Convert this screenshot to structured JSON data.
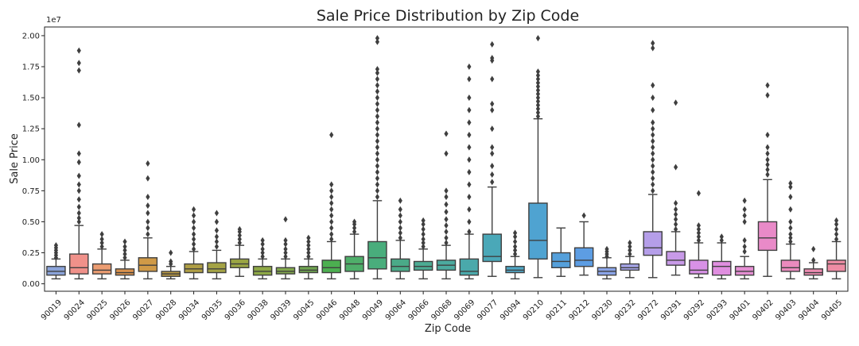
{
  "chart_data": {
    "type": "box",
    "title": "Sale Price Distribution by Zip Code",
    "xlabel": "Zip Code",
    "ylabel": "Sale Price",
    "y_scale_label": "1e7",
    "ylim": [
      -0.06,
      2.07
    ],
    "y_ticks": [
      {
        "value": 0.0,
        "label": "0.00"
      },
      {
        "value": 0.25,
        "label": "0.25"
      },
      {
        "value": 0.5,
        "label": "0.50"
      },
      {
        "value": 0.75,
        "label": "0.75"
      },
      {
        "value": 1.0,
        "label": "1.00"
      },
      {
        "value": 1.25,
        "label": "1.25"
      },
      {
        "value": 1.5,
        "label": "1.50"
      },
      {
        "value": 1.75,
        "label": "1.75"
      },
      {
        "value": 2.0,
        "label": "2.00"
      }
    ],
    "grid": false,
    "legend": "none",
    "boxes": [
      {
        "zip": "90019",
        "color": "#8aa3d9",
        "whislo": 0.04,
        "q1": 0.07,
        "med": 0.1,
        "q3": 0.14,
        "whishi": 0.2,
        "fliers": [
          0.21,
          0.23,
          0.25,
          0.27,
          0.29,
          0.31
        ]
      },
      {
        "zip": "90024",
        "color": "#f0918a",
        "whislo": 0.04,
        "q1": 0.08,
        "med": 0.13,
        "q3": 0.24,
        "whishi": 0.47,
        "fliers": [
          0.5,
          0.53,
          0.57,
          0.62,
          0.68,
          0.75,
          0.8,
          0.87,
          0.98,
          1.05,
          1.28,
          1.72,
          1.78,
          1.88
        ]
      },
      {
        "zip": "90025",
        "color": "#ec9d72",
        "whislo": 0.04,
        "q1": 0.08,
        "med": 0.11,
        "q3": 0.16,
        "whishi": 0.28,
        "fliers": [
          0.3,
          0.33,
          0.36,
          0.4
        ]
      },
      {
        "zip": "90026",
        "color": "#d9914d",
        "whislo": 0.04,
        "q1": 0.07,
        "med": 0.09,
        "q3": 0.12,
        "whishi": 0.19,
        "fliers": [
          0.21,
          0.24,
          0.27,
          0.3,
          0.34
        ]
      },
      {
        "zip": "90027",
        "color": "#d09a47",
        "whislo": 0.04,
        "q1": 0.1,
        "med": 0.15,
        "q3": 0.21,
        "whishi": 0.37,
        "fliers": [
          0.4,
          0.45,
          0.5,
          0.57,
          0.63,
          0.7,
          0.85,
          0.97
        ]
      },
      {
        "zip": "90028",
        "color": "#bd9b42",
        "whislo": 0.04,
        "q1": 0.06,
        "med": 0.08,
        "q3": 0.1,
        "whishi": 0.14,
        "fliers": [
          0.16,
          0.18,
          0.25
        ]
      },
      {
        "zip": "90034",
        "color": "#b09f45",
        "whislo": 0.04,
        "q1": 0.09,
        "med": 0.12,
        "q3": 0.16,
        "whishi": 0.26,
        "fliers": [
          0.28,
          0.32,
          0.36,
          0.4,
          0.45,
          0.5,
          0.55,
          0.6
        ]
      },
      {
        "zip": "90035",
        "color": "#a4a345",
        "whislo": 0.04,
        "q1": 0.09,
        "med": 0.12,
        "q3": 0.17,
        "whishi": 0.27,
        "fliers": [
          0.3,
          0.34,
          0.38,
          0.43,
          0.5,
          0.57
        ]
      },
      {
        "zip": "90036",
        "color": "#9aa544",
        "whislo": 0.06,
        "q1": 0.13,
        "med": 0.16,
        "q3": 0.2,
        "whishi": 0.31,
        "fliers": [
          0.33,
          0.36,
          0.39,
          0.42,
          0.44
        ]
      },
      {
        "zip": "90038",
        "color": "#8ea846",
        "whislo": 0.04,
        "q1": 0.07,
        "med": 0.1,
        "q3": 0.14,
        "whishi": 0.2,
        "fliers": [
          0.22,
          0.25,
          0.28,
          0.32,
          0.35
        ]
      },
      {
        "zip": "90039",
        "color": "#82a84d",
        "whislo": 0.04,
        "q1": 0.08,
        "med": 0.1,
        "q3": 0.13,
        "whishi": 0.2,
        "fliers": [
          0.22,
          0.25,
          0.28,
          0.32,
          0.35,
          0.52
        ]
      },
      {
        "zip": "90045",
        "color": "#6ea34f",
        "whislo": 0.04,
        "q1": 0.09,
        "med": 0.11,
        "q3": 0.14,
        "whishi": 0.2,
        "fliers": [
          0.22,
          0.25,
          0.28,
          0.31,
          0.34,
          0.37
        ]
      },
      {
        "zip": "90046",
        "color": "#4caf50",
        "whislo": 0.04,
        "q1": 0.09,
        "med": 0.13,
        "q3": 0.19,
        "whishi": 0.34,
        "fliers": [
          0.36,
          0.4,
          0.45,
          0.5,
          0.55,
          0.6,
          0.65,
          0.7,
          0.75,
          0.8,
          1.2
        ]
      },
      {
        "zip": "90048",
        "color": "#4fae6a",
        "whislo": 0.04,
        "q1": 0.1,
        "med": 0.16,
        "q3": 0.22,
        "whishi": 0.4,
        "fliers": [
          0.42,
          0.45,
          0.48,
          0.5
        ]
      },
      {
        "zip": "90049",
        "color": "#49ad7c",
        "whislo": 0.04,
        "q1": 0.12,
        "med": 0.21,
        "q3": 0.34,
        "whishi": 0.67,
        "fliers": [
          0.7,
          0.75,
          0.8,
          0.85,
          0.9,
          0.95,
          1.0,
          1.05,
          1.1,
          1.15,
          1.2,
          1.25,
          1.3,
          1.35,
          1.4,
          1.45,
          1.5,
          1.55,
          1.6,
          1.65,
          1.7,
          1.73,
          1.95,
          1.98
        ]
      },
      {
        "zip": "90064",
        "color": "#4aaa88",
        "whislo": 0.04,
        "q1": 0.1,
        "med": 0.14,
        "q3": 0.2,
        "whishi": 0.35,
        "fliers": [
          0.37,
          0.41,
          0.45,
          0.5,
          0.55,
          0.6,
          0.67
        ]
      },
      {
        "zip": "90066",
        "color": "#4cab93",
        "whislo": 0.04,
        "q1": 0.11,
        "med": 0.14,
        "q3": 0.18,
        "whishi": 0.28,
        "fliers": [
          0.3,
          0.33,
          0.36,
          0.4,
          0.44,
          0.48,
          0.51
        ]
      },
      {
        "zip": "90068",
        "color": "#4caa9f",
        "whislo": 0.04,
        "q1": 0.11,
        "med": 0.15,
        "q3": 0.19,
        "whishi": 0.31,
        "fliers": [
          0.33,
          0.37,
          0.42,
          0.47,
          0.52,
          0.58,
          0.64,
          0.7,
          0.75,
          1.05,
          1.21
        ]
      },
      {
        "zip": "90069",
        "color": "#4aa9ab",
        "whislo": 0.04,
        "q1": 0.07,
        "med": 0.1,
        "q3": 0.2,
        "whishi": 0.4,
        "fliers": [
          0.42,
          0.5,
          0.6,
          0.7,
          0.8,
          0.9,
          1.0,
          1.1,
          1.2,
          1.3,
          1.4,
          1.5,
          1.65,
          1.75
        ]
      },
      {
        "zip": "90077",
        "color": "#4aa8b8",
        "whislo": 0.06,
        "q1": 0.18,
        "med": 0.22,
        "q3": 0.4,
        "whishi": 0.78,
        "fliers": [
          0.82,
          0.88,
          0.95,
          1.05,
          1.1,
          1.25,
          1.4,
          1.45,
          1.65,
          1.8,
          1.82,
          1.93
        ]
      },
      {
        "zip": "90094",
        "color": "#4ea6c4",
        "whislo": 0.04,
        "q1": 0.09,
        "med": 0.11,
        "q3": 0.14,
        "whishi": 0.22,
        "fliers": [
          0.24,
          0.27,
          0.3,
          0.34,
          0.38,
          0.41
        ]
      },
      {
        "zip": "90210",
        "color": "#4fa3d1",
        "whislo": 0.05,
        "q1": 0.2,
        "med": 0.35,
        "q3": 0.65,
        "whishi": 1.33,
        "fliers": [
          1.35,
          1.38,
          1.41,
          1.44,
          1.47,
          1.5,
          1.53,
          1.56,
          1.59,
          1.62,
          1.65,
          1.68,
          1.71,
          1.98
        ]
      },
      {
        "zip": "90211",
        "color": "#55a0db",
        "whislo": 0.06,
        "q1": 0.13,
        "med": 0.18,
        "q3": 0.25,
        "whishi": 0.45,
        "fliers": []
      },
      {
        "zip": "90212",
        "color": "#5d9de3",
        "whislo": 0.07,
        "q1": 0.14,
        "med": 0.19,
        "q3": 0.29,
        "whishi": 0.5,
        "fliers": [
          0.55
        ]
      },
      {
        "zip": "90230",
        "color": "#8ba5e8",
        "whislo": 0.04,
        "q1": 0.07,
        "med": 0.1,
        "q3": 0.13,
        "whishi": 0.21,
        "fliers": [
          0.22,
          0.24,
          0.26,
          0.28
        ]
      },
      {
        "zip": "90232",
        "color": "#a7a6e9",
        "whislo": 0.05,
        "q1": 0.11,
        "med": 0.13,
        "q3": 0.16,
        "whishi": 0.22,
        "fliers": [
          0.24,
          0.27,
          0.3,
          0.33
        ]
      },
      {
        "zip": "90272",
        "color": "#b59ee9",
        "whislo": 0.05,
        "q1": 0.23,
        "med": 0.29,
        "q3": 0.42,
        "whishi": 0.72,
        "fliers": [
          0.75,
          0.8,
          0.85,
          0.9,
          0.95,
          1.0,
          1.05,
          1.1,
          1.15,
          1.2,
          1.25,
          1.3,
          1.4,
          1.5,
          1.6,
          1.9,
          1.94
        ]
      },
      {
        "zip": "90291",
        "color": "#c89ae8",
        "whislo": 0.07,
        "q1": 0.15,
        "med": 0.19,
        "q3": 0.26,
        "whishi": 0.42,
        "fliers": [
          0.44,
          0.48,
          0.52,
          0.56,
          0.6,
          0.65,
          0.94,
          1.46
        ]
      },
      {
        "zip": "90292",
        "color": "#d891e6",
        "whislo": 0.05,
        "q1": 0.08,
        "med": 0.11,
        "q3": 0.19,
        "whishi": 0.33,
        "fliers": [
          0.35,
          0.38,
          0.41,
          0.44,
          0.47,
          0.73
        ]
      },
      {
        "zip": "90293",
        "color": "#e08ee0",
        "whislo": 0.04,
        "q1": 0.07,
        "med": 0.14,
        "q3": 0.18,
        "whishi": 0.33,
        "fliers": [
          0.35,
          0.38
        ]
      },
      {
        "zip": "90401",
        "color": "#e48ed2",
        "whislo": 0.04,
        "q1": 0.07,
        "med": 0.1,
        "q3": 0.14,
        "whishi": 0.22,
        "fliers": [
          0.26,
          0.3,
          0.35,
          0.5,
          0.55,
          0.6,
          0.67
        ]
      },
      {
        "zip": "90402",
        "color": "#e98ac8",
        "whislo": 0.06,
        "q1": 0.27,
        "med": 0.37,
        "q3": 0.5,
        "whishi": 0.84,
        "fliers": [
          0.88,
          0.92,
          0.96,
          1.0,
          1.05,
          1.1,
          1.2,
          1.52,
          1.6
        ]
      },
      {
        "zip": "90403",
        "color": "#ea8abd",
        "whislo": 0.04,
        "q1": 0.1,
        "med": 0.13,
        "q3": 0.19,
        "whishi": 0.32,
        "fliers": [
          0.34,
          0.37,
          0.4,
          0.45,
          0.5,
          0.6,
          0.7,
          0.78,
          0.81
        ]
      },
      {
        "zip": "90404",
        "color": "#ec8bb0",
        "whislo": 0.04,
        "q1": 0.07,
        "med": 0.09,
        "q3": 0.12,
        "whishi": 0.17,
        "fliers": [
          0.19,
          0.28
        ]
      },
      {
        "zip": "90405",
        "color": "#ee8ca4",
        "whislo": 0.04,
        "q1": 0.1,
        "med": 0.16,
        "q3": 0.19,
        "whishi": 0.34,
        "fliers": [
          0.36,
          0.4,
          0.44,
          0.48,
          0.51
        ]
      }
    ]
  }
}
